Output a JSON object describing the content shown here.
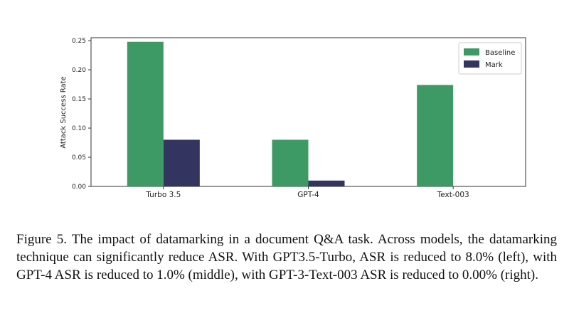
{
  "chart_data": {
    "type": "bar",
    "categories": [
      "Turbo 3.5",
      "GPT-4",
      "Text-003"
    ],
    "series": [
      {
        "name": "Baseline",
        "values": [
          0.248,
          0.08,
          0.174
        ],
        "color": "#3e9a64"
      },
      {
        "name": "Mark",
        "values": [
          0.08,
          0.01,
          0.0
        ],
        "color": "#333460"
      }
    ],
    "ylabel": "Attack Success Rate",
    "xlabel": "",
    "ylim": [
      0,
      0.255
    ],
    "yticks": [
      "0.00",
      "0.05",
      "0.10",
      "0.15",
      "0.20",
      "0.25"
    ],
    "grid": false,
    "legend_position": "top-right"
  },
  "caption": "Figure 5.  The impact of datamarking in a document Q&A task. Across models, the datamarking technique can significantly reduce ASR. With GPT3.5-Turbo, ASR is reduced to 8.0% (left), with GPT-4 ASR is reduced to 1.0% (middle), with GPT-3-Text-003 ASR is reduced to 0.00% (right)."
}
